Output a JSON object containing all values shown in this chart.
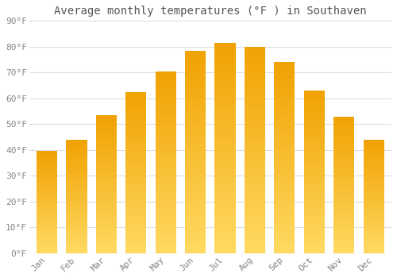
{
  "title": "Average monthly temperatures (°F ) in Southaven",
  "months": [
    "Jan",
    "Feb",
    "Mar",
    "Apr",
    "May",
    "Jun",
    "Jul",
    "Aug",
    "Sep",
    "Oct",
    "Nov",
    "Dec"
  ],
  "values": [
    39.5,
    44.0,
    53.5,
    62.5,
    70.5,
    78.5,
    81.5,
    80.0,
    74.0,
    63.0,
    53.0,
    44.0
  ],
  "bar_color_dark": "#F0A000",
  "bar_color_mid": "#FFC020",
  "bar_color_light": "#FFD860",
  "ylim": [
    0,
    90
  ],
  "yticks": [
    0,
    10,
    20,
    30,
    40,
    50,
    60,
    70,
    80,
    90
  ],
  "ytick_labels": [
    "0°F",
    "10°F",
    "20°F",
    "30°F",
    "40°F",
    "50°F",
    "60°F",
    "70°F",
    "80°F",
    "90°F"
  ],
  "background_color": "#ffffff",
  "grid_color": "#dddddd",
  "title_fontsize": 10,
  "tick_fontsize": 8,
  "bar_width": 0.7
}
